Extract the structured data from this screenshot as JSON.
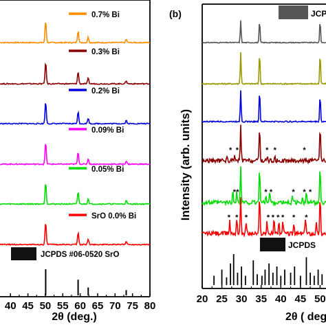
{
  "chart_data": [
    {
      "type": "line",
      "panel_label": "",
      "xlabel": "2θ (deg.)",
      "ylabel": "",
      "xlim": [
        37,
        80
      ],
      "x_ticks": [
        40,
        45,
        50,
        55,
        60,
        65,
        70,
        75,
        80
      ],
      "series": [
        {
          "name": "0.7% Bi",
          "color": "#ff8c00",
          "peaks": [
            [
              50.1,
              1.0
            ],
            [
              59.4,
              0.55
            ],
            [
              62.3,
              0.25
            ],
            [
              73.2,
              0.15
            ]
          ]
        },
        {
          "name": "0.3% Bi",
          "color": "#8b0000",
          "peaks": [
            [
              50.1,
              1.0
            ],
            [
              59.4,
              0.55
            ],
            [
              62.3,
              0.25
            ],
            [
              73.2,
              0.15
            ]
          ]
        },
        {
          "name": "0.2% Bi",
          "color": "#0000e0",
          "peaks": [
            [
              50.1,
              1.0
            ],
            [
              59.4,
              0.55
            ],
            [
              62.3,
              0.25
            ],
            [
              73.2,
              0.15
            ]
          ]
        },
        {
          "name": "0.09% Bi",
          "color": "#ff00ff",
          "peaks": [
            [
              50.1,
              1.0
            ],
            [
              59.4,
              0.55
            ],
            [
              62.3,
              0.25
            ],
            [
              73.2,
              0.15
            ]
          ]
        },
        {
          "name": "0.05% Bi",
          "color": "#00dd00",
          "peaks": [
            [
              50.1,
              1.0
            ],
            [
              59.4,
              0.55
            ],
            [
              62.3,
              0.25
            ],
            [
              73.2,
              0.15
            ]
          ]
        },
        {
          "name": "SrO 0.0% Bi",
          "color": "#ff0000",
          "peaks": [
            [
              50.1,
              1.0
            ],
            [
              59.4,
              0.55
            ],
            [
              62.3,
              0.25
            ],
            [
              73.2,
              0.15
            ]
          ]
        }
      ],
      "reference": {
        "name": "JCPDS #06-0520 SrO",
        "color": "#000000",
        "peaks": [
          [
            50.1,
            1.0
          ],
          [
            59.4,
            0.6
          ],
          [
            62.3,
            0.3
          ],
          [
            73.2,
            0.2
          ]
        ]
      }
    },
    {
      "type": "line",
      "panel_label": "(b)",
      "xlabel": "2θ ( deg.",
      "ylabel": "Intensity (arb. units)",
      "xlim": [
        20,
        51.5
      ],
      "x_ticks": [
        20,
        25,
        30,
        35,
        40,
        45,
        50
      ],
      "reference_top_label": "JCP",
      "reference_bottom_label": "JCPDS",
      "series": [
        {
          "color": "#555555",
          "peaks": [
            [
              29.8,
              1.0
            ],
            [
              34.6,
              1.0
            ],
            [
              50.0,
              1.0
            ]
          ],
          "stars": []
        },
        {
          "color": "#999900",
          "peaks": [
            [
              29.8,
              1.0
            ],
            [
              34.6,
              1.0
            ],
            [
              50.0,
              0.95
            ]
          ],
          "stars": []
        },
        {
          "color": "#0000e0",
          "peaks": [
            [
              29.8,
              1.0
            ],
            [
              34.6,
              1.0
            ],
            [
              50.0,
              0.85
            ]
          ],
          "stars": []
        },
        {
          "color": "#8b0000",
          "peaks": [
            [
              29.8,
              1.0
            ],
            [
              34.6,
              1.0
            ],
            [
              50.0,
              1.0
            ],
            [
              26.3,
              0.1
            ],
            [
              28.2,
              0.12
            ],
            [
              36.5,
              0.12
            ],
            [
              38.5,
              0.08
            ],
            [
              46.0,
              0.06
            ]
          ],
          "stars": [
            27.2,
            28.9,
            36.5,
            38.5,
            46.0
          ]
        },
        {
          "color": "#00dd00",
          "peaks": [
            [
              29.8,
              1.0
            ],
            [
              34.6,
              1.0
            ],
            [
              50.0,
              1.0
            ],
            [
              27.8,
              0.3
            ],
            [
              28.8,
              0.35
            ],
            [
              36.2,
              0.25
            ],
            [
              37.2,
              0.3
            ],
            [
              43.0,
              0.2
            ],
            [
              45.5,
              0.2
            ],
            [
              46.5,
              0.3
            ]
          ],
          "stars": [
            28.2,
            29.0,
            36.2,
            37.5,
            43.2,
            46.0,
            47.5
          ]
        },
        {
          "color": "#ff0000",
          "peaks": [
            [
              29.8,
              1.0
            ],
            [
              34.6,
              1.0
            ],
            [
              50.0,
              1.0
            ],
            [
              27.0,
              0.35
            ],
            [
              28.8,
              0.45
            ],
            [
              31.2,
              0.3
            ],
            [
              36.5,
              0.35
            ],
            [
              38.3,
              0.4
            ],
            [
              39.5,
              0.35
            ],
            [
              40.5,
              0.3
            ],
            [
              43.3,
              0.25
            ],
            [
              46.3,
              0.45
            ],
            [
              49.0,
              0.3
            ]
          ],
          "stars": [
            26.8,
            28.8,
            31.2,
            36.8,
            38.0,
            39.3,
            40.5,
            43.3,
            46.5
          ]
        }
      ],
      "reference_bottom": {
        "color": "#000000",
        "peaks": [
          [
            23.0,
            0.3
          ],
          [
            25.0,
            0.5
          ],
          [
            26.2,
            0.25
          ],
          [
            27.2,
            0.7
          ],
          [
            28.0,
            1.0
          ],
          [
            29.0,
            0.4
          ],
          [
            30.0,
            0.6
          ],
          [
            31.0,
            0.3
          ],
          [
            33.0,
            0.8
          ],
          [
            34.0,
            0.35
          ],
          [
            35.2,
            0.3
          ],
          [
            36.0,
            0.5
          ],
          [
            37.0,
            0.7
          ],
          [
            38.0,
            0.4
          ],
          [
            39.0,
            0.6
          ],
          [
            40.0,
            0.3
          ],
          [
            41.0,
            0.5
          ],
          [
            42.5,
            0.4
          ],
          [
            43.5,
            0.6
          ],
          [
            45.0,
            0.3
          ],
          [
            46.5,
            0.9
          ],
          [
            47.5,
            0.4
          ],
          [
            48.5,
            0.3
          ],
          [
            49.5,
            0.5
          ],
          [
            50.5,
            0.35
          ]
        ]
      }
    }
  ]
}
